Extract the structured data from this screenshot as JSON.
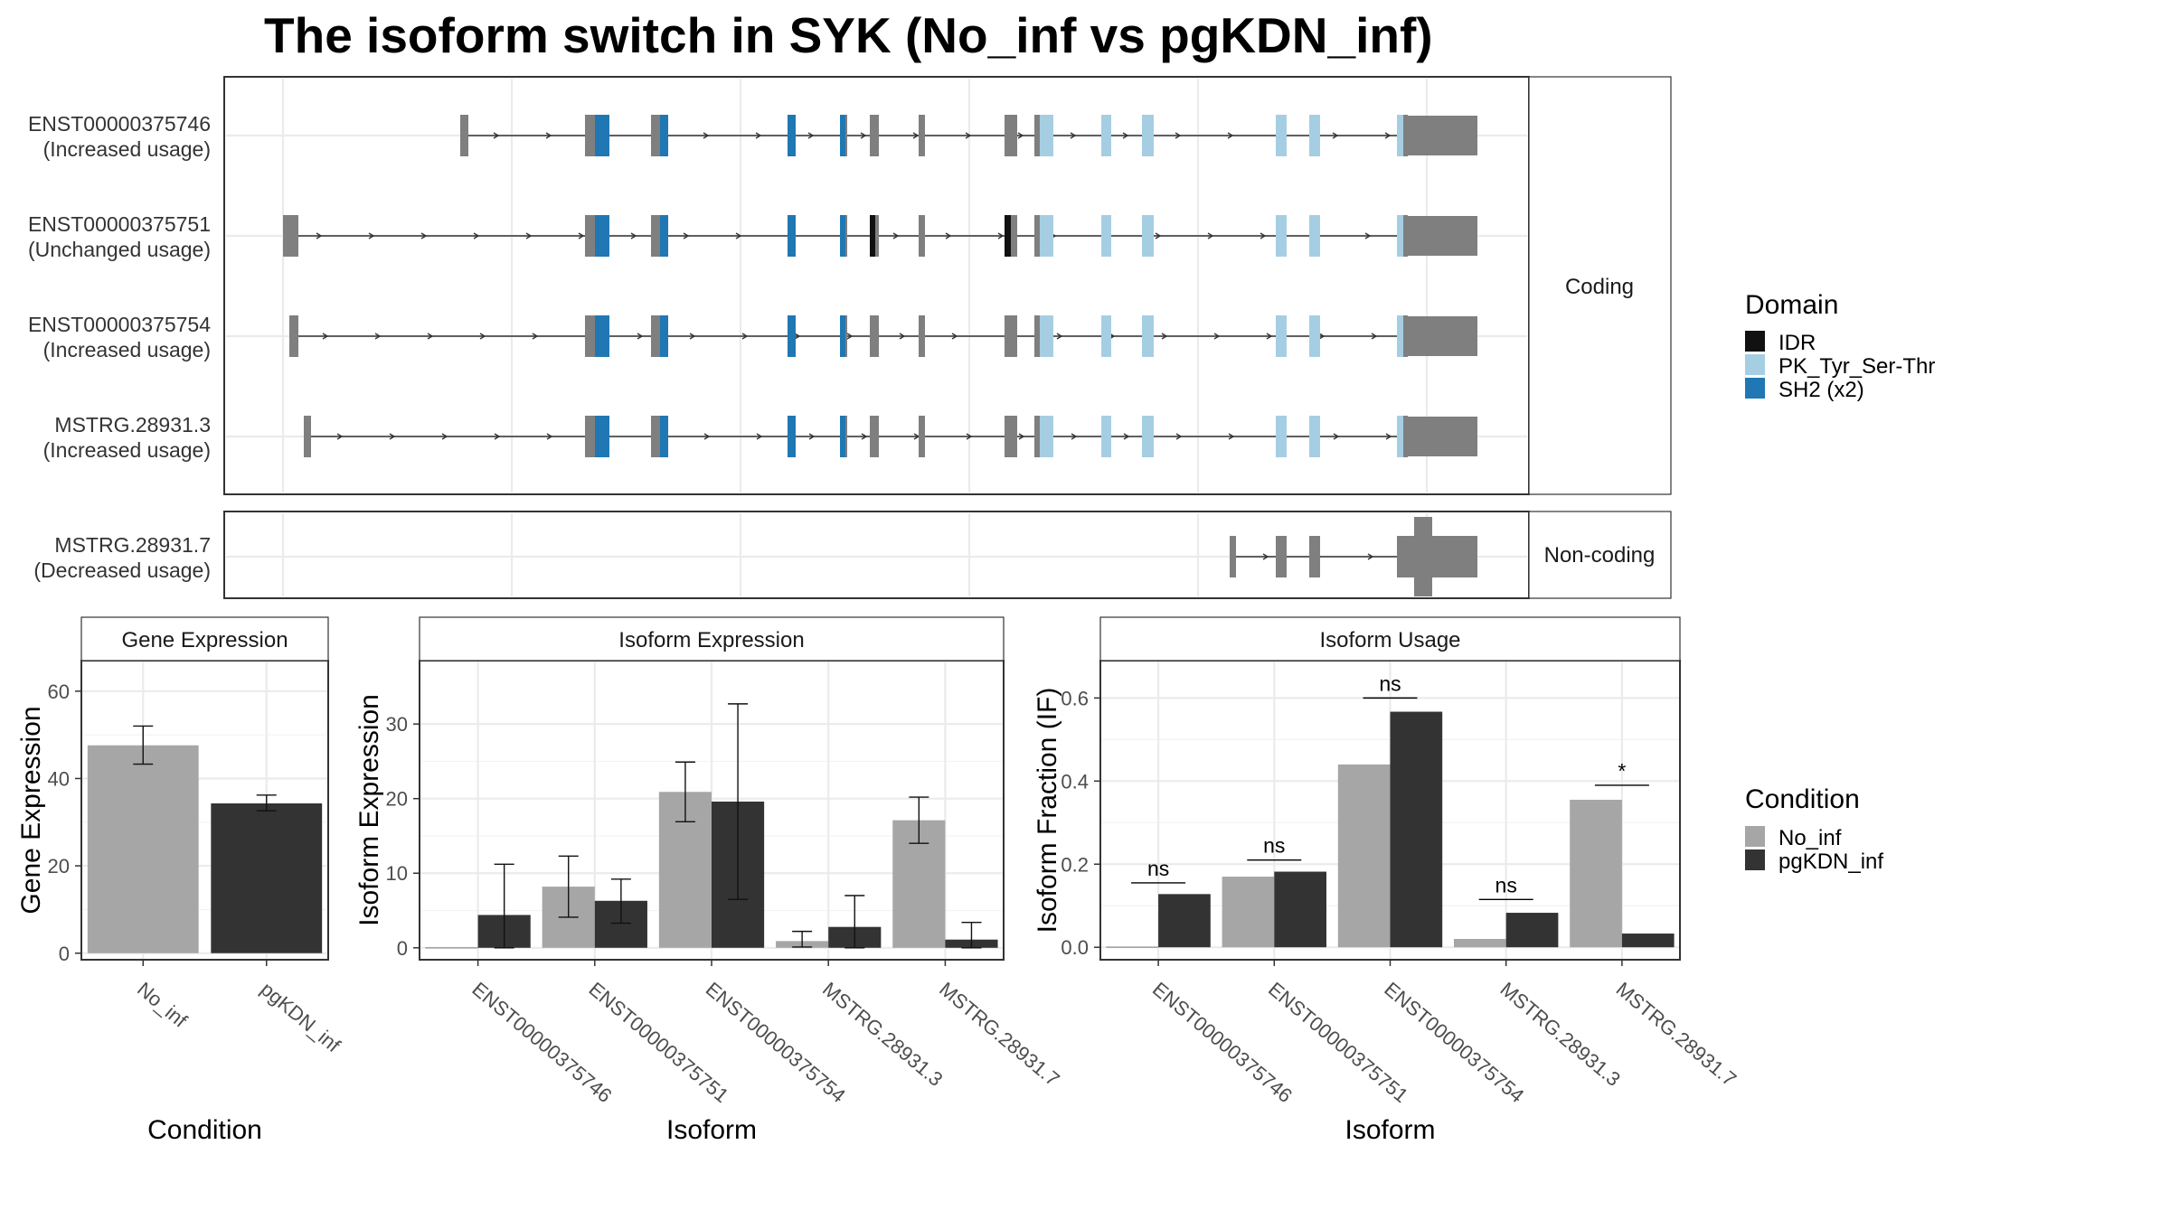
{
  "title": "The isoform switch in SYK (No_inf vs pgKDN_inf)",
  "colors": {
    "No_inf": "#a6a6a6",
    "pgKDN_inf": "#333333",
    "IDR": "#111111",
    "PK_Tyr_Ser-Thr": "#a6cee3",
    "SH2 (x2)": "#1f78b4",
    "exon": "#7f7f7f"
  },
  "chart_data": [
    {
      "type": "transcript_structure",
      "facets": [
        "Coding",
        "Non-coding"
      ],
      "transcripts": [
        {
          "id": "ENST00000375746",
          "status": "(Increased usage)",
          "facet": "Coding"
        },
        {
          "id": "ENST00000375751",
          "status": "(Unchanged usage)",
          "facet": "Coding"
        },
        {
          "id": "ENST00000375754",
          "status": "(Increased usage)",
          "facet": "Coding"
        },
        {
          "id": "MSTRG.28931.3",
          "status": "(Increased usage)",
          "facet": "Coding"
        },
        {
          "id": "MSTRG.28931.7",
          "status": "(Decreased usage)",
          "facet": "Non-coding"
        }
      ],
      "legend": {
        "title": "Domain",
        "entries": [
          "IDR",
          "PK_Tyr_Ser-Thr",
          "SH2 (x2)"
        ]
      }
    },
    {
      "type": "bar",
      "title": "Gene Expression",
      "xlabel": "Condition",
      "ylabel": "Gene Expression",
      "ylim": [
        -1.5,
        67
      ],
      "yticks": [
        0,
        20,
        40,
        60
      ],
      "categories": [
        "No_inf",
        "pgKDN_inf"
      ],
      "values": [
        47.6,
        34.3
      ],
      "err_low": [
        43.3,
        32.6
      ],
      "err_high": [
        52.0,
        36.2
      ]
    },
    {
      "type": "bar",
      "title": "Isoform Expression",
      "xlabel": "Isoform",
      "ylabel": "Isoform Expression",
      "ylim": [
        -1.6,
        38.5
      ],
      "yticks": [
        0,
        10,
        20,
        30
      ],
      "categories": [
        "ENST00000375746",
        "ENST00000375751",
        "ENST00000375754",
        "MSTRG.28931.3",
        "MSTRG.28931.7"
      ],
      "series": [
        {
          "name": "No_inf",
          "values": [
            0.0,
            8.2,
            20.9,
            0.9,
            17.1
          ],
          "err_low": [
            0.0,
            4.1,
            16.9,
            0.1,
            14.0
          ],
          "err_high": [
            0.0,
            12.3,
            24.9,
            2.2,
            20.2
          ]
        },
        {
          "name": "pgKDN_inf",
          "values": [
            4.4,
            6.3,
            19.6,
            2.8,
            1.1
          ],
          "err_low": [
            0.0,
            3.3,
            6.5,
            0.0,
            0.0
          ],
          "err_high": [
            11.2,
            9.2,
            32.7,
            7.0,
            3.4
          ]
        }
      ]
    },
    {
      "type": "bar",
      "title": "Isoform Usage",
      "xlabel": "Isoform",
      "ylabel": "Isoform Fraction (IF)",
      "ylim": [
        -0.03,
        0.69
      ],
      "yticks": [
        0.0,
        0.2,
        0.4,
        0.6
      ],
      "ytick_labels": [
        "0.0",
        "0.2",
        "0.4",
        "0.6"
      ],
      "categories": [
        "ENST00000375746",
        "ENST00000375751",
        "ENST00000375754",
        "MSTRG.28931.3",
        "MSTRG.28931.7"
      ],
      "series": [
        {
          "name": "No_inf",
          "values": [
            0.0,
            0.17,
            0.44,
            0.02,
            0.355
          ]
        },
        {
          "name": "pgKDN_inf",
          "values": [
            0.128,
            0.182,
            0.567,
            0.083,
            0.033
          ]
        }
      ],
      "significance": [
        {
          "label": "ns",
          "y": 0.155
        },
        {
          "label": "ns",
          "y": 0.21
        },
        {
          "label": "ns",
          "y": 0.6
        },
        {
          "label": "ns",
          "y": 0.115
        },
        {
          "label": "*",
          "y": 0.39
        }
      ]
    }
  ],
  "condition_legend": {
    "title": "Condition",
    "entries": [
      "No_inf",
      "pgKDN_inf"
    ]
  }
}
